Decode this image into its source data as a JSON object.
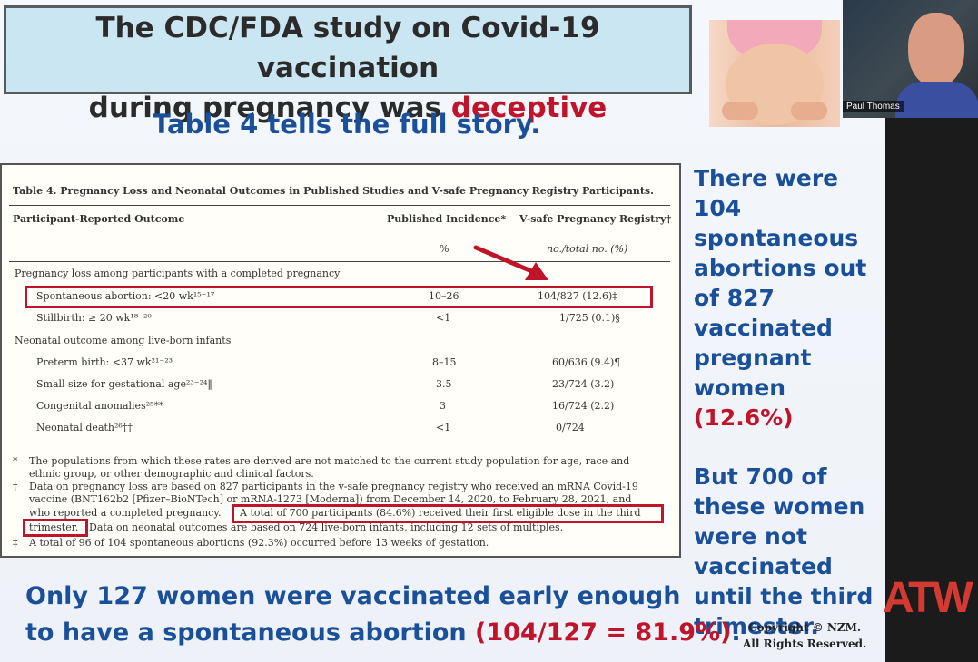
{
  "slide": {
    "title_line1": "The CDC/FDA study on Covid-19 vaccination",
    "title_line2_pre": "during pregnancy was ",
    "title_line2_red": "deceptive",
    "subtitle": "Table 4 tells the full story."
  },
  "webcam": {
    "name": "Paul Thomas"
  },
  "table": {
    "title": "Table 4. Pregnancy Loss and Neonatal Outcomes in Published Studies and V-safe Pregnancy Registry Participants.",
    "col_outcome": "Participant-Reported Outcome",
    "col_published": "Published Incidence*",
    "col_vsafe": "V-safe Pregnancy Registry†",
    "unit_published": "%",
    "unit_vsafe": "no./total no. (%)",
    "section1": "Pregnancy loss among participants with a completed pregnancy",
    "section2": "Neonatal outcome among live-born infants",
    "rows": [
      {
        "label": "Spontaneous abortion: <20 wk¹⁵⁻¹⁷",
        "pub": "10–26",
        "vs": "104/827 (12.6)‡"
      },
      {
        "label": "Stillbirth: ≥ 20 wk¹⁸⁻²⁰",
        "pub": "<1",
        "vs": "1/725 (0.1)§"
      },
      {
        "label": "Preterm birth: <37 wk²¹⁻²³",
        "pub": "8–15",
        "vs": "60/636 (9.4)¶"
      },
      {
        "label": "Small size for gestational age²³⁻²⁴‖",
        "pub": "3.5",
        "vs": "23/724 (3.2)"
      },
      {
        "label": "Congenital anomalies²⁵**",
        "pub": "3",
        "vs": "16/724 (2.2)"
      },
      {
        "label": "Neonatal death²⁶††",
        "pub": "<1",
        "vs": "0/724"
      }
    ],
    "fn_star_mark": "*",
    "fn_star_1": "The populations from which these rates are derived are not matched to the current study population for age, race and",
    "fn_star_2": "ethnic group, or other demographic and clinical factors.",
    "fn_dagger_mark": "†",
    "fn_dagger_1": "Data on pregnancy loss are based on 827 participants in the v-safe pregnancy registry who received an mRNA Covid-19",
    "fn_dagger_2": "vaccine (BNT162b2 [Pfizer–BioNTech] or mRNA-1273 [Moderna]) from December 14, 2020, to February 28, 2021, and",
    "fn_dagger_3_pre": "who reported a completed pregnancy.",
    "fn_dagger_3_hl": "A total of 700 participants (84.6%) received their first eligible dose in the third",
    "fn_dagger_4_hl": "trimester.",
    "fn_dagger_4_rest": "Data on neonatal outcomes are based on 724 live-born infants, including 12 sets of multiples.",
    "fn_ddagger_mark": "‡",
    "fn_ddagger": "A total of 96 of 104 spontaneous abortions (92.3%) occurred before 13 weeks of gestation."
  },
  "right_text": {
    "l1": "There were 104",
    "l2": "spontaneous",
    "l3": "abortions out",
    "l4": "of 827",
    "l5": "vaccinated",
    "l6": "pregnant",
    "l7_pre": "women ",
    "l7_red": "(12.6%)",
    "m1": "But 700 of",
    "m2": "these women",
    "m3": "were not",
    "m4": "vaccinated",
    "m5": "until the third",
    "m6": "trimester."
  },
  "bottom": {
    "line1": "Only 127 women were vaccinated early enough",
    "line2_pre": "to have a spontaneous abortion ",
    "line2_red": "(104/127 = 81.9%)",
    "line2_end": "."
  },
  "copyright": {
    "l1": "Copyright © NZM.",
    "l2": "All Rights Reserved."
  },
  "logo": "ATW",
  "colors": {
    "accent_blue": "#1a4f9a",
    "accent_red": "#c0142b",
    "title_bg": "#cbe6f3"
  }
}
